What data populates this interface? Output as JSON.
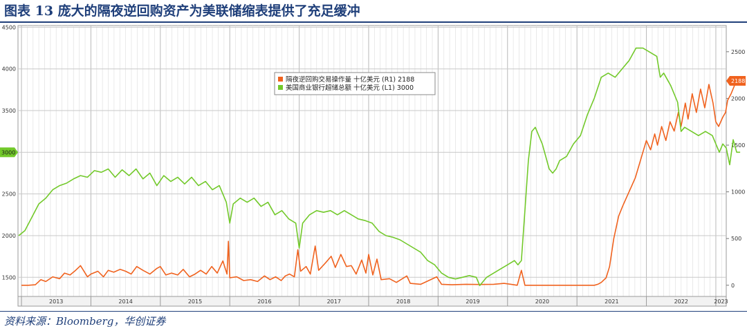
{
  "figure": {
    "title": "图表 13  庞大的隔夜逆回购资产为美联储缩表提供了充足缓冲",
    "source": "资料来源：Bloomberg，华创证券"
  },
  "colors": {
    "title": "#1f3f7a",
    "rrp_series": "#f0621e",
    "reserves_series": "#72c92a",
    "grid": "#c8c8c8",
    "axis_text": "#333333"
  },
  "chart_data": {
    "type": "line",
    "title": "",
    "grid": true,
    "legend_position": "top-center",
    "x_axis": {
      "label": "",
      "ticks": [
        "2013",
        "2014",
        "2015",
        "2016",
        "2017",
        "2018",
        "2019",
        "2020",
        "2021",
        "2022",
        "2023"
      ],
      "range": [
        2012.95,
        2023.15
      ]
    },
    "y_left": {
      "label": "",
      "range": [
        1270,
        4520
      ],
      "ticks": [
        1500,
        2000,
        2500,
        3000,
        3500,
        4000,
        4500
      ]
    },
    "y_right": {
      "label": "",
      "range": [
        -120,
        2780
      ],
      "ticks": [
        0,
        500,
        1000,
        1500,
        2000,
        2500
      ]
    },
    "series": [
      {
        "name": "隔夜逆回购交易操作量 十亿美元 (R1) 2188",
        "axis": "right",
        "last_value_label": "2188",
        "points": [
          [
            2013.0,
            0
          ],
          [
            2013.1,
            0
          ],
          [
            2013.2,
            5
          ],
          [
            2013.28,
            60
          ],
          [
            2013.35,
            40
          ],
          [
            2013.45,
            90
          ],
          [
            2013.55,
            70
          ],
          [
            2013.62,
            130
          ],
          [
            2013.7,
            110
          ],
          [
            2013.78,
            160
          ],
          [
            2013.85,
            210
          ],
          [
            2013.95,
            90
          ],
          [
            2014.0,
            120
          ],
          [
            2014.1,
            150
          ],
          [
            2014.18,
            90
          ],
          [
            2014.25,
            160
          ],
          [
            2014.33,
            140
          ],
          [
            2014.42,
            170
          ],
          [
            2014.5,
            150
          ],
          [
            2014.58,
            120
          ],
          [
            2014.66,
            200
          ],
          [
            2014.75,
            160
          ],
          [
            2014.85,
            120
          ],
          [
            2014.95,
            180
          ],
          [
            2015.0,
            200
          ],
          [
            2015.08,
            110
          ],
          [
            2015.16,
            130
          ],
          [
            2015.25,
            110
          ],
          [
            2015.33,
            170
          ],
          [
            2015.42,
            90
          ],
          [
            2015.5,
            120
          ],
          [
            2015.58,
            160
          ],
          [
            2015.66,
            120
          ],
          [
            2015.74,
            200
          ],
          [
            2015.82,
            130
          ],
          [
            2015.9,
            260
          ],
          [
            2015.96,
            120
          ],
          [
            2015.98,
            470
          ],
          [
            2016.0,
            80
          ],
          [
            2016.1,
            90
          ],
          [
            2016.2,
            50
          ],
          [
            2016.3,
            60
          ],
          [
            2016.4,
            40
          ],
          [
            2016.5,
            100
          ],
          [
            2016.58,
            60
          ],
          [
            2016.66,
            90
          ],
          [
            2016.74,
            50
          ],
          [
            2016.8,
            100
          ],
          [
            2016.86,
            120
          ],
          [
            2016.93,
            90
          ],
          [
            2016.98,
            380
          ],
          [
            2017.02,
            150
          ],
          [
            2017.1,
            200
          ],
          [
            2017.16,
            120
          ],
          [
            2017.23,
            420
          ],
          [
            2017.28,
            160
          ],
          [
            2017.38,
            240
          ],
          [
            2017.46,
            310
          ],
          [
            2017.52,
            190
          ],
          [
            2017.6,
            330
          ],
          [
            2017.68,
            200
          ],
          [
            2017.75,
            210
          ],
          [
            2017.82,
            120
          ],
          [
            2017.9,
            270
          ],
          [
            2017.96,
            130
          ],
          [
            2018.0,
            330
          ],
          [
            2018.06,
            110
          ],
          [
            2018.12,
            280
          ],
          [
            2018.18,
            60
          ],
          [
            2018.3,
            70
          ],
          [
            2018.4,
            30
          ],
          [
            2018.55,
            100
          ],
          [
            2018.6,
            20
          ],
          [
            2018.75,
            10
          ],
          [
            2018.98,
            90
          ],
          [
            2019.05,
            10
          ],
          [
            2019.2,
            5
          ],
          [
            2019.4,
            10
          ],
          [
            2019.6,
            8
          ],
          [
            2019.8,
            10
          ],
          [
            2019.95,
            20
          ],
          [
            2020.05,
            10
          ],
          [
            2020.14,
            0
          ],
          [
            2020.2,
            160
          ],
          [
            2020.25,
            0
          ],
          [
            2020.5,
            0
          ],
          [
            2020.75,
            0
          ],
          [
            2021.0,
            0
          ],
          [
            2021.25,
            0
          ],
          [
            2021.3,
            10
          ],
          [
            2021.35,
            30
          ],
          [
            2021.42,
            80
          ],
          [
            2021.47,
            200
          ],
          [
            2021.53,
            500
          ],
          [
            2021.6,
            740
          ],
          [
            2021.66,
            850
          ],
          [
            2021.72,
            950
          ],
          [
            2021.78,
            1050
          ],
          [
            2021.84,
            1150
          ],
          [
            2021.9,
            1300
          ],
          [
            2021.96,
            1450
          ],
          [
            2022.0,
            1550
          ],
          [
            2022.06,
            1450
          ],
          [
            2022.12,
            1620
          ],
          [
            2022.16,
            1500
          ],
          [
            2022.22,
            1700
          ],
          [
            2022.28,
            1550
          ],
          [
            2022.34,
            1750
          ],
          [
            2022.4,
            1650
          ],
          [
            2022.46,
            1850
          ],
          [
            2022.5,
            1700
          ],
          [
            2022.56,
            1950
          ],
          [
            2022.6,
            1780
          ],
          [
            2022.66,
            2050
          ],
          [
            2022.72,
            1850
          ],
          [
            2022.78,
            2100
          ],
          [
            2022.84,
            1900
          ],
          [
            2022.9,
            2150
          ],
          [
            2022.96,
            1950
          ],
          [
            2023.0,
            1750
          ],
          [
            2023.04,
            1700
          ],
          [
            2023.1,
            1800
          ],
          [
            2023.14,
            1850
          ],
          [
            2023.17,
            1980
          ],
          [
            2023.22,
            2050
          ],
          [
            2023.28,
            2160
          ],
          [
            2023.33,
            2188
          ]
        ]
      },
      {
        "name": "美国商业银行超储总额 十亿美元 (L1) 3000",
        "axis": "left",
        "last_value_label": "3000",
        "points": [
          [
            2012.96,
            2000
          ],
          [
            2013.05,
            2060
          ],
          [
            2013.15,
            2220
          ],
          [
            2013.25,
            2380
          ],
          [
            2013.35,
            2450
          ],
          [
            2013.45,
            2550
          ],
          [
            2013.55,
            2600
          ],
          [
            2013.65,
            2630
          ],
          [
            2013.75,
            2680
          ],
          [
            2013.85,
            2720
          ],
          [
            2013.95,
            2700
          ],
          [
            2014.05,
            2780
          ],
          [
            2014.15,
            2760
          ],
          [
            2014.25,
            2800
          ],
          [
            2014.35,
            2700
          ],
          [
            2014.45,
            2790
          ],
          [
            2014.55,
            2720
          ],
          [
            2014.65,
            2800
          ],
          [
            2014.75,
            2680
          ],
          [
            2014.85,
            2750
          ],
          [
            2014.95,
            2600
          ],
          [
            2015.05,
            2720
          ],
          [
            2015.15,
            2650
          ],
          [
            2015.25,
            2700
          ],
          [
            2015.35,
            2620
          ],
          [
            2015.45,
            2700
          ],
          [
            2015.55,
            2600
          ],
          [
            2015.65,
            2650
          ],
          [
            2015.75,
            2550
          ],
          [
            2015.85,
            2600
          ],
          [
            2015.95,
            2400
          ],
          [
            2016.0,
            2150
          ],
          [
            2016.05,
            2380
          ],
          [
            2016.15,
            2450
          ],
          [
            2016.25,
            2400
          ],
          [
            2016.35,
            2450
          ],
          [
            2016.45,
            2350
          ],
          [
            2016.55,
            2400
          ],
          [
            2016.65,
            2250
          ],
          [
            2016.75,
            2300
          ],
          [
            2016.85,
            2200
          ],
          [
            2016.95,
            2150
          ],
          [
            2017.0,
            1850
          ],
          [
            2017.05,
            2150
          ],
          [
            2017.15,
            2250
          ],
          [
            2017.25,
            2300
          ],
          [
            2017.35,
            2280
          ],
          [
            2017.45,
            2300
          ],
          [
            2017.55,
            2250
          ],
          [
            2017.65,
            2300
          ],
          [
            2017.75,
            2250
          ],
          [
            2017.85,
            2200
          ],
          [
            2017.95,
            2180
          ],
          [
            2018.05,
            2150
          ],
          [
            2018.15,
            2050
          ],
          [
            2018.25,
            2000
          ],
          [
            2018.35,
            1980
          ],
          [
            2018.45,
            1950
          ],
          [
            2018.55,
            1900
          ],
          [
            2018.65,
            1850
          ],
          [
            2018.75,
            1800
          ],
          [
            2018.85,
            1700
          ],
          [
            2018.95,
            1650
          ],
          [
            2019.05,
            1550
          ],
          [
            2019.15,
            1500
          ],
          [
            2019.25,
            1480
          ],
          [
            2019.35,
            1500
          ],
          [
            2019.45,
            1520
          ],
          [
            2019.55,
            1500
          ],
          [
            2019.6,
            1400
          ],
          [
            2019.7,
            1500
          ],
          [
            2019.8,
            1550
          ],
          [
            2019.9,
            1600
          ],
          [
            2020.0,
            1650
          ],
          [
            2020.1,
            1700
          ],
          [
            2020.15,
            1650
          ],
          [
            2020.2,
            1700
          ],
          [
            2020.25,
            2300
          ],
          [
            2020.3,
            2900
          ],
          [
            2020.35,
            3250
          ],
          [
            2020.4,
            3300
          ],
          [
            2020.45,
            3200
          ],
          [
            2020.5,
            3100
          ],
          [
            2020.55,
            2950
          ],
          [
            2020.6,
            2800
          ],
          [
            2020.65,
            2750
          ],
          [
            2020.7,
            2800
          ],
          [
            2020.75,
            2900
          ],
          [
            2020.85,
            2950
          ],
          [
            2020.95,
            3100
          ],
          [
            2021.05,
            3200
          ],
          [
            2021.15,
            3450
          ],
          [
            2021.25,
            3650
          ],
          [
            2021.35,
            3900
          ],
          [
            2021.45,
            3950
          ],
          [
            2021.55,
            3900
          ],
          [
            2021.65,
            4000
          ],
          [
            2021.75,
            4100
          ],
          [
            2021.85,
            4250
          ],
          [
            2021.95,
            4250
          ],
          [
            2022.05,
            4200
          ],
          [
            2022.15,
            4150
          ],
          [
            2022.2,
            3900
          ],
          [
            2022.25,
            3950
          ],
          [
            2022.35,
            3800
          ],
          [
            2022.45,
            3600
          ],
          [
            2022.5,
            3250
          ],
          [
            2022.55,
            3300
          ],
          [
            2022.65,
            3250
          ],
          [
            2022.75,
            3200
          ],
          [
            2022.85,
            3250
          ],
          [
            2022.95,
            3200
          ],
          [
            2023.05,
            3000
          ],
          [
            2023.1,
            3100
          ],
          [
            2023.15,
            3050
          ],
          [
            2023.2,
            2850
          ],
          [
            2023.25,
            3150
          ],
          [
            2023.3,
            3000
          ],
          [
            2023.35,
            3000
          ]
        ]
      }
    ]
  }
}
